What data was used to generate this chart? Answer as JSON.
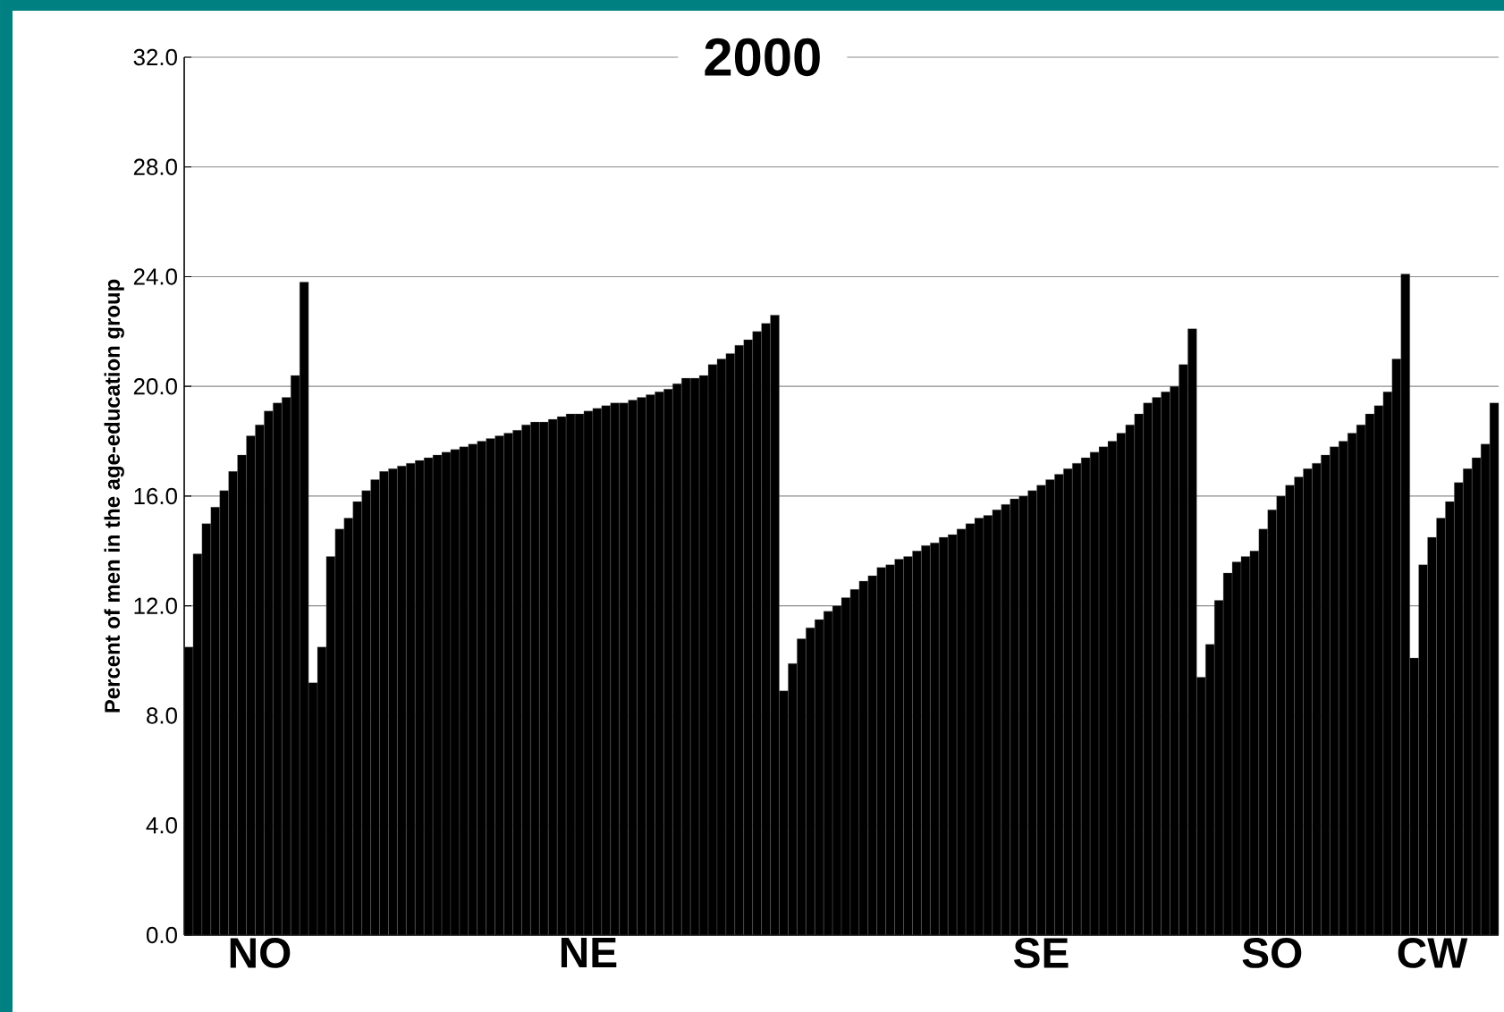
{
  "chart_data": {
    "type": "bar",
    "title": "2000",
    "ylabel": "Percent of men in the age-education group",
    "color": "#000000",
    "categories": [
      null,
      null,
      null,
      null,
      null,
      null,
      null,
      null,
      "NO",
      null,
      null,
      null,
      null,
      null,
      null,
      null,
      null,
      null,
      null,
      null,
      null,
      null,
      null,
      null,
      null,
      null,
      null,
      null,
      null,
      null,
      null,
      null,
      null,
      null,
      null,
      null,
      null,
      null,
      null,
      null,
      null,
      null,
      null,
      null,
      null,
      "NE",
      null,
      null,
      null,
      null,
      null,
      null,
      null,
      null,
      null,
      null,
      null,
      null,
      null,
      null,
      null,
      null,
      null,
      null,
      null,
      null,
      null,
      null,
      null,
      null,
      null,
      null,
      null,
      null,
      null,
      null,
      null,
      null,
      null,
      null,
      null,
      null,
      null,
      null,
      null,
      null,
      null,
      null,
      null,
      null,
      null,
      null,
      null,
      null,
      null,
      null,
      "SE",
      null,
      null,
      null,
      null,
      null,
      null,
      null,
      null,
      null,
      null,
      null,
      null,
      null,
      null,
      null,
      null,
      null,
      null,
      null,
      null,
      null,
      null,
      null,
      null,
      null,
      "SO",
      null,
      null,
      null,
      null,
      null,
      null,
      null,
      null,
      null,
      null,
      null,
      null,
      null,
      null,
      null,
      null,
      null,
      "CW",
      null,
      null,
      null,
      null,
      null,
      null,
      null
    ],
    "values": [
      10.5,
      13.9,
      15.0,
      15.6,
      16.2,
      16.9,
      17.5,
      18.2,
      18.6,
      19.1,
      19.4,
      19.6,
      20.4,
      23.8,
      9.2,
      10.5,
      13.8,
      14.8,
      15.2,
      15.8,
      16.2,
      16.6,
      16.9,
      17.0,
      17.1,
      17.2,
      17.3,
      17.4,
      17.5,
      17.6,
      17.7,
      17.8,
      17.9,
      18.0,
      18.1,
      18.2,
      18.3,
      18.4,
      18.6,
      18.7,
      18.7,
      18.8,
      18.9,
      19.0,
      19.0,
      19.1,
      19.2,
      19.3,
      19.4,
      19.4,
      19.5,
      19.6,
      19.7,
      19.8,
      19.9,
      20.1,
      20.3,
      20.3,
      20.4,
      20.8,
      21.0,
      21.2,
      21.5,
      21.7,
      22.0,
      22.3,
      22.6,
      8.9,
      9.9,
      10.8,
      11.2,
      11.5,
      11.8,
      12.0,
      12.3,
      12.6,
      12.9,
      13.1,
      13.4,
      13.5,
      13.7,
      13.8,
      14.0,
      14.2,
      14.3,
      14.5,
      14.6,
      14.8,
      15.0,
      15.2,
      15.3,
      15.5,
      15.7,
      15.9,
      16.0,
      16.2,
      16.4,
      16.6,
      16.8,
      17.0,
      17.2,
      17.4,
      17.6,
      17.8,
      18.0,
      18.3,
      18.6,
      19.0,
      19.4,
      19.6,
      19.8,
      20.0,
      20.8,
      22.1,
      9.4,
      10.6,
      12.2,
      13.2,
      13.6,
      13.8,
      14.0,
      14.8,
      15.5,
      16.0,
      16.4,
      16.7,
      17.0,
      17.2,
      17.5,
      17.8,
      18.0,
      18.3,
      18.6,
      19.0,
      19.3,
      19.8,
      21.0,
      24.1,
      10.1,
      13.5,
      14.5,
      15.2,
      15.8,
      16.5,
      17.0,
      17.4,
      17.9,
      19.4
    ],
    "ylim": [
      0,
      32
    ],
    "yticks": [
      {
        "value": 0,
        "label": "0.0"
      },
      {
        "value": 4,
        "label": "4.0"
      },
      {
        "value": 8,
        "label": "8.0"
      },
      {
        "value": 12,
        "label": "12.0"
      },
      {
        "value": 16,
        "label": "16.0"
      },
      {
        "value": 20,
        "label": "20.0"
      },
      {
        "value": 24,
        "label": "24.0"
      },
      {
        "value": 28,
        "label": "28.0"
      },
      {
        "value": 32,
        "label": "32.0"
      }
    ],
    "grid": "y"
  }
}
